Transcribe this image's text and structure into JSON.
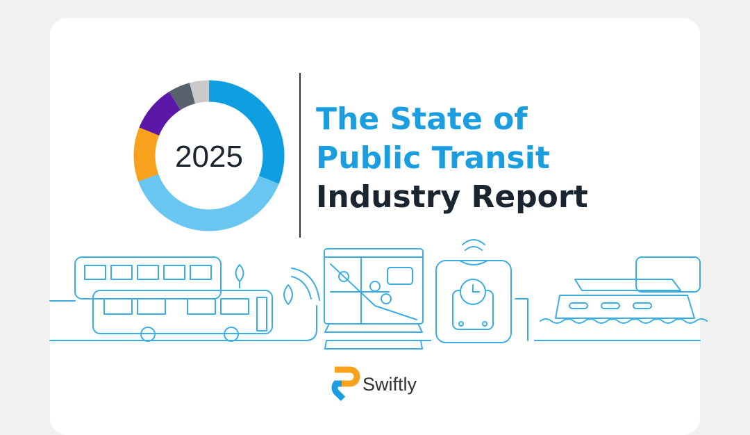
{
  "cover": {
    "year": "2025",
    "title_line1": "The State of",
    "title_line2": "Public Transit",
    "title_line3": "Industry Report",
    "brand": "Swiftly"
  }
}
